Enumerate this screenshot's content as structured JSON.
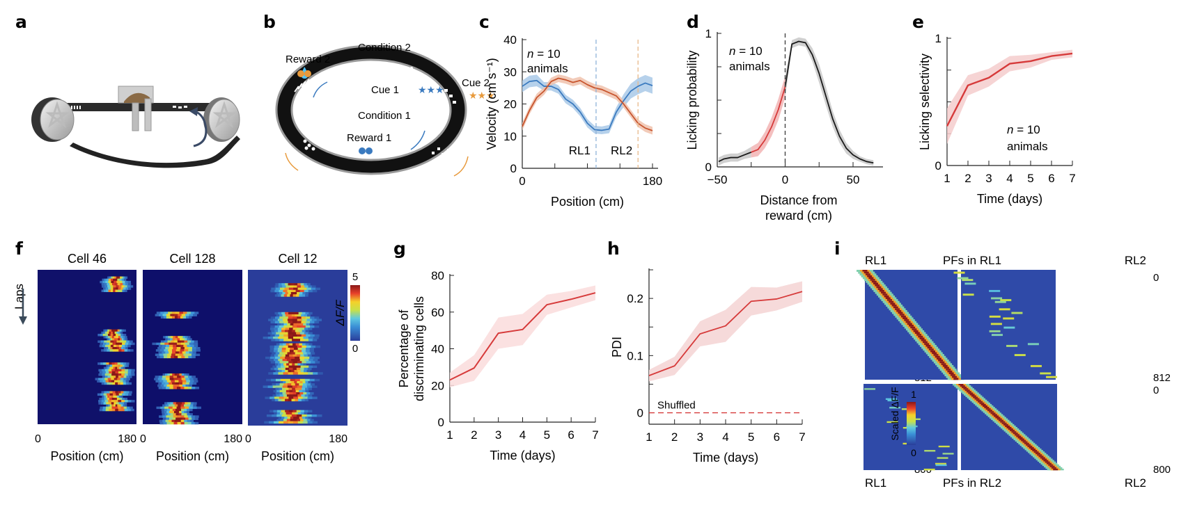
{
  "panels": {
    "a": {
      "label": "a"
    },
    "b": {
      "label": "b",
      "condition1": "Condition 1",
      "condition2": "Condition 2",
      "cue1": "Cue 1",
      "cue2": "Cue 2",
      "reward1": "Reward 1",
      "reward2": "Reward 2",
      "color_condition1": "#3a7abf",
      "color_condition2": "#e89a3c"
    },
    "f": {
      "label": "f",
      "laps_label": "Laps",
      "cells": [
        "Cell 46",
        "Cell 128",
        "Cell 12"
      ],
      "xtick_min": "0",
      "xtick_max": "180",
      "xlabel": "Position (cm)",
      "colorbar_label": "ΔF/F",
      "colorbar_max": "5",
      "colorbar_min": "0"
    },
    "i": {
      "label": "i",
      "top_title": "PFs in RL1",
      "bottom_title": "PFs in RL2",
      "left_label": "RL1",
      "right_label": "RL2",
      "top_rows_start": "0",
      "top_rows_end": "812",
      "bottom_rows_start": "0",
      "bottom_rows_end": "800",
      "colorbar_label": "Scaled ΔF/F",
      "colorbar_max": "1",
      "colorbar_min": "0"
    }
  },
  "chart_data": [
    {
      "id": "c",
      "type": "line",
      "title": "",
      "xlabel": "Position (cm)",
      "ylabel": "Velocity (cm s⁻¹)",
      "xlim": [
        0,
        180
      ],
      "ylim": [
        0,
        40
      ],
      "xticks": [
        0,
        45,
        90,
        135,
        180
      ],
      "xticklabels": [
        "0",
        "",
        "",
        "",
        "180"
      ],
      "yticks": [
        0,
        10,
        20,
        30,
        40
      ],
      "annotation": [
        "n = 10",
        "animals"
      ],
      "vlines": [
        {
          "x": 102,
          "label": "RL1",
          "color": "#8fb3d9"
        },
        {
          "x": 160,
          "label": "RL2",
          "color": "#e8b98a"
        }
      ],
      "x": [
        0,
        10,
        20,
        30,
        40,
        50,
        60,
        70,
        80,
        90,
        100,
        110,
        120,
        130,
        140,
        150,
        160,
        170,
        180
      ],
      "series": [
        {
          "name": "Condition 1",
          "color": "#3a7abf",
          "band": "#a9c9e8",
          "values": [
            25.5,
            27,
            27.3,
            25.5,
            25.5,
            24.5,
            21.5,
            20,
            17.5,
            14,
            12,
            11.8,
            12.2,
            17.5,
            21,
            24,
            25.5,
            26.5,
            25.7
          ],
          "err": [
            1.8,
            1.8,
            1.8,
            1.3,
            1.3,
            1.3,
            1.3,
            1.3,
            1.3,
            1.3,
            1.2,
            1.2,
            1.3,
            1.5,
            2,
            2.3,
            2.5,
            2.5,
            2.5
          ]
        },
        {
          "name": "Condition 2",
          "color": "#c8552e",
          "band": "#f0c2ad",
          "values": [
            13,
            18,
            22,
            24,
            27,
            28,
            27.5,
            26.7,
            27.3,
            26,
            25,
            24.5,
            23.5,
            22.5,
            20,
            17,
            14,
            12.5,
            11.7
          ],
          "err": [
            1.2,
            1.2,
            1.2,
            1.2,
            1.2,
            1.2,
            1.2,
            1.2,
            1.2,
            1.2,
            1.2,
            1.2,
            1.2,
            1.2,
            1.2,
            1.2,
            1.2,
            1.2,
            1.2
          ]
        }
      ]
    },
    {
      "id": "d",
      "type": "line",
      "xlabel": "Distance from reward (cm)",
      "ylabel": "Licking probability",
      "xlim": [
        -50,
        70
      ],
      "ylim": [
        0,
        1
      ],
      "xticks": [
        -50,
        -25,
        0,
        25,
        50
      ],
      "xticklabels": [
        "−50",
        "",
        "0",
        "",
        "50"
      ],
      "yticks": [
        0,
        0.25,
        0.5,
        0.75,
        1
      ],
      "yticklabels": [
        "0",
        "",
        "",
        "",
        "1"
      ],
      "annotation": [
        "n = 10",
        "animals"
      ],
      "vline": {
        "x": 0,
        "color": "#444444"
      },
      "x": [
        -49,
        -45,
        -40,
        -35,
        -30,
        -25,
        -20,
        -15,
        -10,
        -5,
        0,
        5,
        10,
        15,
        20,
        25,
        30,
        35,
        40,
        45,
        50,
        55,
        60,
        65
      ],
      "values": [
        0.04,
        0.06,
        0.07,
        0.07,
        0.09,
        0.11,
        0.13,
        0.2,
        0.3,
        0.43,
        0.6,
        0.92,
        0.94,
        0.93,
        0.84,
        0.7,
        0.53,
        0.36,
        0.23,
        0.14,
        0.09,
        0.06,
        0.04,
        0.03
      ],
      "err": [
        0.03,
        0.03,
        0.03,
        0.03,
        0.03,
        0.04,
        0.05,
        0.06,
        0.07,
        0.08,
        0.08,
        0.03,
        0.03,
        0.03,
        0.05,
        0.07,
        0.07,
        0.06,
        0.05,
        0.04,
        0.03,
        0.02,
        0.02,
        0.02
      ],
      "highlight_range": [
        -25,
        0
      ],
      "color": "#1a1a1a",
      "band": "#c8c8c8",
      "highlight_color": "#d63a3a",
      "highlight_band": "#f2b4b4"
    },
    {
      "id": "e",
      "type": "line",
      "xlabel": "Time (days)",
      "ylabel": "Licking selectivity",
      "xlim": [
        1,
        7
      ],
      "ylim": [
        0,
        1
      ],
      "xticks": [
        1,
        2,
        3,
        4,
        5,
        6,
        7
      ],
      "yticks": [
        0,
        0.25,
        0.5,
        0.75,
        1
      ],
      "yticklabels": [
        "0",
        "",
        "",
        "",
        "1"
      ],
      "annotation": [
        "n = 10",
        "animals"
      ],
      "x": [
        1,
        2,
        3,
        4,
        5,
        6,
        7
      ],
      "values": [
        0.31,
        0.63,
        0.69,
        0.8,
        0.82,
        0.86,
        0.88
      ],
      "err": [
        0.14,
        0.08,
        0.07,
        0.06,
        0.05,
        0.03,
        0.03
      ],
      "color": "#d63a3a",
      "band": "#f5cccc"
    },
    {
      "id": "g",
      "type": "line",
      "xlabel": "Time (days)",
      "ylabel": "Percentage of discriminating cells",
      "ylabel_lines": [
        "Percentage of",
        "discriminating cells"
      ],
      "xlim": [
        1,
        7
      ],
      "ylim": [
        0,
        80
      ],
      "xticks": [
        1,
        2,
        3,
        4,
        5,
        6,
        7
      ],
      "yticks": [
        0,
        20,
        40,
        60,
        80
      ],
      "x": [
        1,
        2,
        3,
        4,
        5,
        6,
        7
      ],
      "values": [
        23,
        29.5,
        48.5,
        50.5,
        64,
        67,
        70.5
      ],
      "err": [
        4,
        7,
        8.5,
        8.5,
        5.5,
        4.5,
        4
      ],
      "color": "#d63a3a",
      "band": "#fadcdc"
    },
    {
      "id": "h",
      "type": "line",
      "xlabel": "Time (days)",
      "ylabel": "PDI",
      "xlim": [
        1,
        7
      ],
      "ylim": [
        -0.02,
        0.25
      ],
      "xticks": [
        1,
        2,
        3,
        4,
        5,
        6,
        7
      ],
      "yticks": [
        0,
        0.05,
        0.1,
        0.15,
        0.2,
        0.25
      ],
      "yticklabels": [
        "0",
        "",
        "0.1",
        "",
        "0.2",
        ""
      ],
      "x": [
        1,
        2,
        3,
        4,
        5,
        6,
        7
      ],
      "values": [
        0.065,
        0.082,
        0.138,
        0.152,
        0.195,
        0.199,
        0.212
      ],
      "err": [
        0.01,
        0.016,
        0.022,
        0.028,
        0.025,
        0.02,
        0.018
      ],
      "shuffled": {
        "label": "Shuffled",
        "value": 0
      },
      "color": "#d63a3a",
      "band": "#f5d4d4"
    }
  ]
}
